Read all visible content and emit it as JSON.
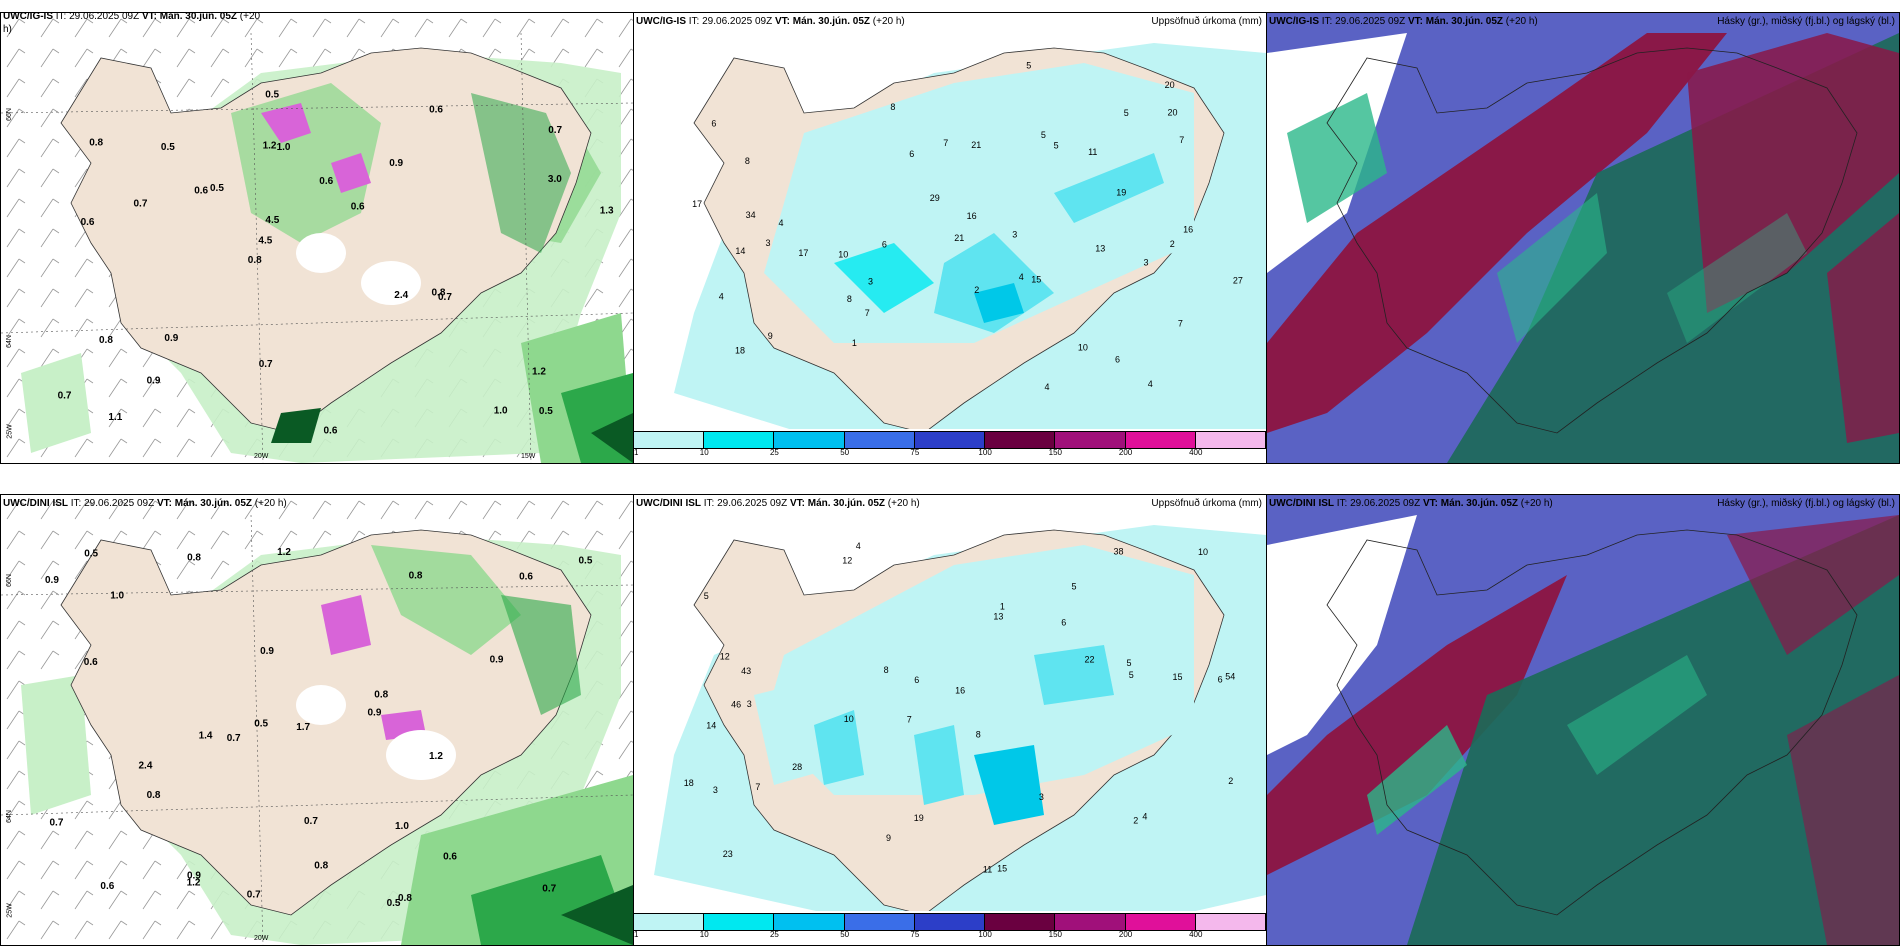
{
  "rows": [
    {
      "left": {
        "model": "UWC/IG-IS",
        "it": "IT: 29.06.2025 09Z",
        "vt": "VT: Mán. 30.jún. 05Z",
        "lead": "(+20",
        "lead2": "h)"
      },
      "mid": {
        "model": "UWC/IG-IS",
        "it": "IT: 29.06.2025 09Z",
        "vt": "VT: Mán. 30.jún. 05Z",
        "lead": "(+20 h)",
        "title": "Uppsöfnuð úrkoma (mm)"
      },
      "right": {
        "model": "UWC/IG-IS",
        "it": "IT: 29.06.2025 09Z",
        "vt": "VT: Mán. 30.jún. 05Z",
        "lead": "(+20 h)",
        "title": "Hásky (gr.), miðský (fj.bl.) og lágský (bl.)"
      }
    },
    {
      "left": {
        "model": "UWC/DINI ISL",
        "it": "IT: 29.06.2025 09Z",
        "vt": "VT: Mán. 30.jún. 05Z",
        "lead": "(+20 h)",
        "lead2": ""
      },
      "mid": {
        "model": "UWC/DINI ISL",
        "it": "IT: 29.06.2025 09Z",
        "vt": "VT: Mán. 30.jún. 05Z",
        "lead": "(+20 h)",
        "title": "Uppsöfnuð úrkoma (mm)"
      },
      "right": {
        "model": "UWC/DINI ISL",
        "it": "IT: 29.06.2025 09Z",
        "vt": "VT: Mán. 30.jún. 05Z",
        "lead": "(+20 h)",
        "title": "Hásky (gr.), miðský (fj.bl.) og lágský (bl.)"
      }
    }
  ],
  "legend": {
    "ticks": [
      "1",
      "10",
      "25",
      "50",
      "75",
      "100",
      "150",
      "200",
      "400"
    ],
    "colors": [
      "#bff4f4",
      "#00e8f0",
      "#00c0f0",
      "#3a6ee8",
      "#2c3ec8",
      "#6a0040",
      "#a0107a",
      "#e0109a",
      "#f4b8ec"
    ]
  },
  "axis_labels": {
    "lat66": "66N",
    "lat64": "64N",
    "lon25": "25W",
    "lon20": "20W",
    "lon15": "15W"
  },
  "precip_top": [
    "0.5",
    "0.6",
    "0.7",
    "0.8",
    "0.9",
    "1.1",
    "1.2",
    "0.6",
    "0.8",
    "0.5",
    "0.7",
    "0.9",
    "1.0",
    "0.6",
    "0.7",
    "0.8",
    "0.5",
    "1.3",
    "2.4",
    "3.0",
    "4.5",
    "0.7",
    "4.5",
    "0.5",
    "0.6",
    "0.9",
    "1.0",
    "1.2",
    "0.8",
    "0.6",
    "0.6",
    "0.7"
  ],
  "precip_bot": [
    "0.7",
    "0.5",
    "0.9",
    "0.6",
    "0.8",
    "1.0",
    "1.4",
    "0.7",
    "1.2",
    "0.9",
    "0.6",
    "0.8",
    "0.5",
    "0.7",
    "0.8",
    "0.9",
    "0.6",
    "1.2",
    "0.7",
    "0.9",
    "1.0",
    "0.5",
    "0.8",
    "0.6",
    "0.9",
    "2.4",
    "0.7",
    "0.8",
    "0.5",
    "1.2",
    "1.7",
    "0.8"
  ],
  "accum_top": [
    "4",
    "3",
    "4",
    "6",
    "7",
    "8",
    "9",
    "10",
    "11",
    "7",
    "5",
    "6",
    "7",
    "8",
    "3",
    "4",
    "13",
    "16",
    "17",
    "18",
    "20",
    "21",
    "19",
    "27",
    "16",
    "34",
    "17",
    "21",
    "29",
    "20",
    "15",
    "14",
    "8",
    "5",
    "6",
    "3",
    "2",
    "10",
    "5",
    "4",
    "3",
    "2",
    "1",
    "5",
    "6",
    "4",
    "7"
  ],
  "accum_bot": [
    "4",
    "5",
    "6",
    "7",
    "8",
    "3",
    "5",
    "6",
    "14",
    "13",
    "16",
    "23",
    "12",
    "10",
    "11",
    "15",
    "19",
    "38",
    "22",
    "28",
    "43",
    "46",
    "54",
    "15",
    "18",
    "12",
    "6",
    "5",
    "4",
    "3",
    "2",
    "1",
    "7",
    "8",
    "3",
    "2",
    "5",
    "9",
    "10"
  ],
  "colors": {
    "land": "#f1e3d5",
    "sea": "#ffffff",
    "green1": "#c8f0c8",
    "green2": "#8ed88e",
    "green3": "#2ca84a",
    "green4": "#0a5a24",
    "magenta": "#d864d8",
    "cyan1": "#bff4f4",
    "cyan2": "#5fe4f0",
    "cyan3": "#00c8e8",
    "cloudHigh": "#8a1848",
    "cloudMid": "#5a62c4",
    "cloudLow": "#1c6a58"
  }
}
